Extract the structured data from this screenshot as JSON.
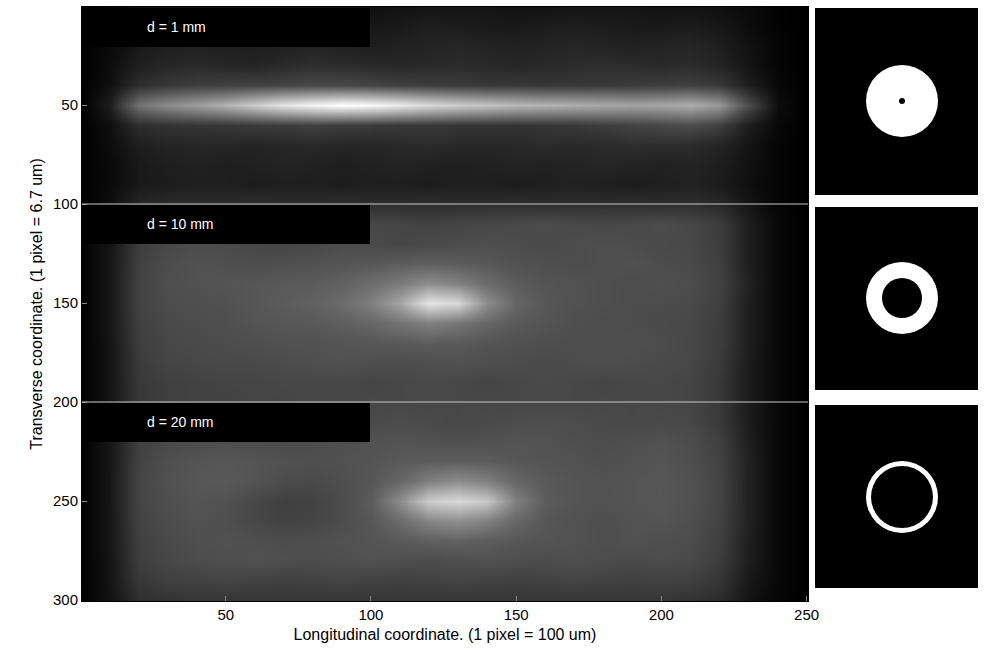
{
  "chart_data": {
    "type": "heatmap",
    "x_label": "Longitudinal coordinate. (1 pixel = 100 um)",
    "y_label": "Transverse coordinate. (1 pixel = 6.7 um)",
    "annotations": [
      "d = 1 mm",
      "d = 10 mm",
      "d = 20 mm"
    ],
    "panel_boundaries": [
      100,
      200
    ],
    "xlim": [
      0.5,
      250.5
    ],
    "xticks": [
      50,
      100,
      150,
      200,
      250
    ],
    "ylim": [
      300.5,
      0.5
    ],
    "yticks": [
      50,
      100,
      150,
      200,
      250,
      300
    ],
    "x": [
      0,
      10,
      20,
      30,
      40,
      50,
      60,
      70,
      80,
      90,
      100,
      110,
      120,
      130,
      140,
      150,
      160,
      170,
      180,
      190,
      200,
      210,
      220,
      230,
      240,
      250
    ],
    "y": [
      0,
      10,
      20,
      30,
      40,
      50,
      60,
      70,
      80,
      90,
      100,
      110,
      120,
      130,
      140,
      150,
      160,
      170,
      180,
      190,
      200,
      210,
      220,
      230,
      240,
      250,
      260,
      270,
      280,
      290,
      300
    ],
    "z": [
      [
        0,
        0.02,
        0.05,
        0.06,
        0.06,
        0.06,
        0.06,
        0.06,
        0.06,
        0.06,
        0.06,
        0.07,
        0.08,
        0.08,
        0.08,
        0.07,
        0.07,
        0.08,
        0.08,
        0.08,
        0.07,
        0.07,
        0.06,
        0.04,
        0.01,
        0
      ],
      [
        0,
        0.03,
        0.08,
        0.09,
        0.09,
        0.09,
        0.09,
        0.09,
        0.09,
        0.09,
        0.09,
        0.1,
        0.12,
        0.11,
        0.1,
        0.1,
        0.11,
        0.12,
        0.11,
        0.1,
        0.1,
        0.11,
        0.09,
        0.05,
        0.01,
        0
      ],
      [
        0,
        0.04,
        0.1,
        0.12,
        0.13,
        0.12,
        0.12,
        0.13,
        0.14,
        0.13,
        0.12,
        0.13,
        0.14,
        0.15,
        0.14,
        0.13,
        0.14,
        0.15,
        0.14,
        0.13,
        0.14,
        0.15,
        0.12,
        0.07,
        0.02,
        0
      ],
      [
        0,
        0.05,
        0.12,
        0.15,
        0.16,
        0.15,
        0.14,
        0.16,
        0.18,
        0.17,
        0.16,
        0.15,
        0.16,
        0.17,
        0.16,
        0.15,
        0.16,
        0.17,
        0.18,
        0.17,
        0.16,
        0.17,
        0.14,
        0.08,
        0.02,
        0
      ],
      [
        0,
        0.06,
        0.18,
        0.22,
        0.24,
        0.25,
        0.26,
        0.27,
        0.28,
        0.28,
        0.27,
        0.25,
        0.24,
        0.23,
        0.22,
        0.22,
        0.21,
        0.22,
        0.22,
        0.23,
        0.24,
        0.25,
        0.22,
        0.12,
        0.03,
        0
      ],
      [
        0,
        0.12,
        0.45,
        0.55,
        0.62,
        0.7,
        0.8,
        0.9,
        0.96,
        1.0,
        0.98,
        0.92,
        0.85,
        0.8,
        0.76,
        0.72,
        0.7,
        0.68,
        0.66,
        0.64,
        0.65,
        0.68,
        0.6,
        0.3,
        0.05,
        0
      ],
      [
        0,
        0.06,
        0.18,
        0.2,
        0.21,
        0.22,
        0.23,
        0.24,
        0.25,
        0.24,
        0.23,
        0.22,
        0.22,
        0.21,
        0.21,
        0.2,
        0.21,
        0.22,
        0.24,
        0.26,
        0.28,
        0.3,
        0.25,
        0.12,
        0.03,
        0
      ],
      [
        0,
        0.05,
        0.12,
        0.14,
        0.15,
        0.15,
        0.14,
        0.15,
        0.16,
        0.15,
        0.15,
        0.16,
        0.17,
        0.16,
        0.15,
        0.16,
        0.17,
        0.16,
        0.17,
        0.18,
        0.18,
        0.17,
        0.14,
        0.08,
        0.02,
        0
      ],
      [
        0,
        0.04,
        0.1,
        0.12,
        0.13,
        0.12,
        0.13,
        0.14,
        0.13,
        0.12,
        0.13,
        0.14,
        0.13,
        0.12,
        0.13,
        0.14,
        0.13,
        0.14,
        0.15,
        0.14,
        0.13,
        0.14,
        0.12,
        0.07,
        0.02,
        0
      ],
      [
        0,
        0.04,
        0.1,
        0.11,
        0.12,
        0.12,
        0.11,
        0.12,
        0.12,
        0.11,
        0.12,
        0.12,
        0.11,
        0.12,
        0.12,
        0.11,
        0.12,
        0.13,
        0.12,
        0.11,
        0.12,
        0.13,
        0.11,
        0.06,
        0.02,
        0
      ],
      [
        0,
        0.05,
        0.15,
        0.17,
        0.18,
        0.18,
        0.18,
        0.18,
        0.18,
        0.18,
        0.18,
        0.18,
        0.18,
        0.18,
        0.18,
        0.18,
        0.18,
        0.18,
        0.18,
        0.18,
        0.18,
        0.18,
        0.16,
        0.08,
        0.02,
        0
      ],
      [
        0,
        0.08,
        0.22,
        0.25,
        0.26,
        0.27,
        0.28,
        0.27,
        0.26,
        0.27,
        0.28,
        0.27,
        0.26,
        0.27,
        0.28,
        0.29,
        0.3,
        0.29,
        0.28,
        0.29,
        0.3,
        0.28,
        0.24,
        0.12,
        0.03,
        0
      ],
      [
        0,
        0.08,
        0.24,
        0.28,
        0.3,
        0.29,
        0.28,
        0.27,
        0.28,
        0.3,
        0.29,
        0.28,
        0.29,
        0.3,
        0.31,
        0.3,
        0.29,
        0.3,
        0.31,
        0.3,
        0.29,
        0.28,
        0.24,
        0.12,
        0.03,
        0
      ],
      [
        0,
        0.09,
        0.25,
        0.3,
        0.32,
        0.31,
        0.3,
        0.31,
        0.32,
        0.33,
        0.34,
        0.36,
        0.37,
        0.36,
        0.34,
        0.32,
        0.31,
        0.3,
        0.31,
        0.32,
        0.3,
        0.29,
        0.25,
        0.12,
        0.03,
        0
      ],
      [
        0,
        0.09,
        0.26,
        0.31,
        0.32,
        0.33,
        0.34,
        0.35,
        0.36,
        0.38,
        0.42,
        0.48,
        0.55,
        0.5,
        0.42,
        0.36,
        0.33,
        0.32,
        0.31,
        0.3,
        0.31,
        0.3,
        0.26,
        0.13,
        0.03,
        0
      ],
      [
        0,
        0.09,
        0.26,
        0.3,
        0.31,
        0.32,
        0.34,
        0.36,
        0.38,
        0.42,
        0.5,
        0.65,
        0.9,
        0.85,
        0.55,
        0.4,
        0.34,
        0.32,
        0.31,
        0.3,
        0.3,
        0.29,
        0.25,
        0.12,
        0.03,
        0
      ],
      [
        0,
        0.09,
        0.25,
        0.29,
        0.3,
        0.31,
        0.33,
        0.34,
        0.35,
        0.37,
        0.4,
        0.45,
        0.5,
        0.46,
        0.4,
        0.35,
        0.33,
        0.31,
        0.3,
        0.3,
        0.29,
        0.28,
        0.24,
        0.12,
        0.03,
        0
      ],
      [
        0,
        0.08,
        0.24,
        0.28,
        0.29,
        0.3,
        0.31,
        0.32,
        0.32,
        0.33,
        0.34,
        0.35,
        0.36,
        0.35,
        0.33,
        0.32,
        0.31,
        0.3,
        0.3,
        0.31,
        0.3,
        0.28,
        0.24,
        0.12,
        0.03,
        0
      ],
      [
        0,
        0.08,
        0.23,
        0.27,
        0.28,
        0.29,
        0.29,
        0.3,
        0.31,
        0.32,
        0.31,
        0.3,
        0.31,
        0.32,
        0.31,
        0.3,
        0.29,
        0.3,
        0.31,
        0.3,
        0.29,
        0.28,
        0.23,
        0.11,
        0.03,
        0
      ],
      [
        0,
        0.08,
        0.22,
        0.25,
        0.26,
        0.27,
        0.27,
        0.28,
        0.28,
        0.28,
        0.27,
        0.28,
        0.29,
        0.28,
        0.27,
        0.28,
        0.29,
        0.28,
        0.27,
        0.28,
        0.28,
        0.27,
        0.22,
        0.11,
        0.03,
        0
      ],
      [
        0,
        0.08,
        0.22,
        0.25,
        0.26,
        0.26,
        0.27,
        0.27,
        0.28,
        0.28,
        0.28,
        0.28,
        0.28,
        0.28,
        0.28,
        0.28,
        0.28,
        0.28,
        0.28,
        0.28,
        0.28,
        0.27,
        0.22,
        0.11,
        0.03,
        0
      ],
      [
        0,
        0.08,
        0.22,
        0.26,
        0.27,
        0.28,
        0.29,
        0.28,
        0.27,
        0.28,
        0.29,
        0.3,
        0.29,
        0.28,
        0.29,
        0.3,
        0.31,
        0.3,
        0.29,
        0.28,
        0.29,
        0.28,
        0.23,
        0.11,
        0.03,
        0
      ],
      [
        0,
        0.09,
        0.25,
        0.29,
        0.3,
        0.31,
        0.3,
        0.29,
        0.3,
        0.31,
        0.32,
        0.33,
        0.32,
        0.31,
        0.32,
        0.33,
        0.32,
        0.31,
        0.3,
        0.31,
        0.32,
        0.3,
        0.25,
        0.12,
        0.03,
        0
      ],
      [
        0,
        0.09,
        0.26,
        0.31,
        0.33,
        0.34,
        0.33,
        0.32,
        0.31,
        0.32,
        0.33,
        0.35,
        0.36,
        0.37,
        0.36,
        0.34,
        0.33,
        0.32,
        0.31,
        0.32,
        0.33,
        0.31,
        0.26,
        0.13,
        0.03,
        0
      ],
      [
        0,
        0.09,
        0.27,
        0.32,
        0.34,
        0.35,
        0.33,
        0.3,
        0.29,
        0.31,
        0.34,
        0.4,
        0.5,
        0.55,
        0.5,
        0.4,
        0.35,
        0.33,
        0.32,
        0.33,
        0.34,
        0.32,
        0.27,
        0.13,
        0.03,
        0
      ],
      [
        0,
        0.09,
        0.27,
        0.31,
        0.33,
        0.32,
        0.28,
        0.25,
        0.26,
        0.3,
        0.36,
        0.55,
        0.8,
        0.85,
        0.78,
        0.5,
        0.36,
        0.33,
        0.32,
        0.33,
        0.34,
        0.32,
        0.27,
        0.13,
        0.03,
        0
      ],
      [
        0,
        0.09,
        0.26,
        0.3,
        0.32,
        0.31,
        0.28,
        0.26,
        0.27,
        0.3,
        0.34,
        0.42,
        0.52,
        0.56,
        0.5,
        0.4,
        0.34,
        0.32,
        0.31,
        0.32,
        0.33,
        0.31,
        0.26,
        0.13,
        0.03,
        0
      ],
      [
        0,
        0.09,
        0.25,
        0.29,
        0.31,
        0.32,
        0.31,
        0.3,
        0.31,
        0.32,
        0.33,
        0.35,
        0.37,
        0.38,
        0.36,
        0.34,
        0.33,
        0.32,
        0.31,
        0.32,
        0.31,
        0.3,
        0.25,
        0.12,
        0.03,
        0
      ],
      [
        0,
        0.08,
        0.24,
        0.28,
        0.3,
        0.31,
        0.32,
        0.31,
        0.3,
        0.31,
        0.32,
        0.31,
        0.3,
        0.31,
        0.32,
        0.31,
        0.3,
        0.31,
        0.3,
        0.29,
        0.3,
        0.29,
        0.24,
        0.12,
        0.03,
        0
      ],
      [
        0,
        0.08,
        0.22,
        0.25,
        0.26,
        0.27,
        0.26,
        0.25,
        0.26,
        0.27,
        0.26,
        0.25,
        0.26,
        0.27,
        0.26,
        0.25,
        0.26,
        0.27,
        0.26,
        0.25,
        0.26,
        0.25,
        0.21,
        0.1,
        0.03,
        0
      ],
      [
        0,
        0.07,
        0.18,
        0.2,
        0.21,
        0.21,
        0.21,
        0.21,
        0.21,
        0.21,
        0.21,
        0.21,
        0.21,
        0.21,
        0.21,
        0.21,
        0.21,
        0.21,
        0.21,
        0.21,
        0.21,
        0.2,
        0.17,
        0.08,
        0.02,
        0
      ]
    ]
  }
}
